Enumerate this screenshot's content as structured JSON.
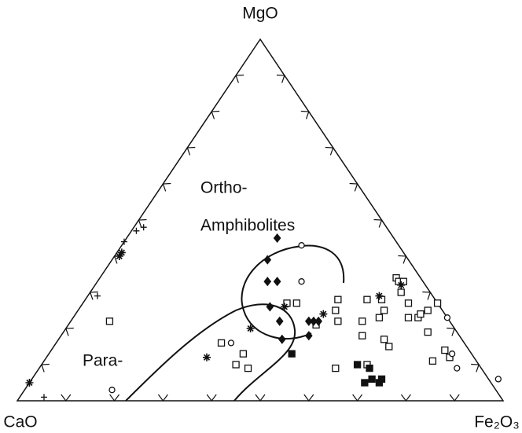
{
  "chart_data": {
    "type": "ternary",
    "corners": {
      "top": "MgO",
      "left": "CaO",
      "right": "Fe₂O₃"
    },
    "annotations": [
      "Ortho-",
      "Amphibolites",
      "Para-"
    ],
    "ticks": [
      10,
      20,
      30,
      40,
      50,
      60,
      70,
      80,
      90
    ],
    "color": "#111",
    "series": [
      {
        "marker": "square-open",
        "mgo": [
          22,
          16,
          10,
          9,
          13,
          27,
          27,
          28,
          25,
          22,
          21,
          9,
          10,
          28,
          22,
          18,
          23,
          28,
          25,
          17,
          15,
          34,
          33,
          33,
          30,
          27,
          23,
          23,
          24,
          25,
          27,
          19,
          11,
          14,
          12
        ],
        "fe2o3": [
          8,
          34,
          40,
          43,
          40,
          42,
          44,
          52,
          53,
          55,
          51,
          61,
          67,
          58,
          60,
          62,
          63,
          61,
          63,
          67,
          69,
          61,
          62,
          63,
          64,
          67,
          69,
          71,
          71,
          72,
          73,
          75,
          80,
          81,
          83
        ]
      },
      {
        "marker": "square-filled",
        "mgo": [
          13,
          10,
          9,
          6,
          5,
          5,
          6
        ],
        "fe2o3": [
          50,
          65,
          68,
          70,
          69,
          72,
          72
        ]
      },
      {
        "marker": "diamond",
        "mgo": [
          45,
          39,
          33,
          33,
          26,
          22,
          17,
          22,
          22,
          22,
          18
        ],
        "fe2o3": [
          31,
          32,
          35,
          37,
          39,
          43,
          46,
          49,
          50,
          51,
          51
        ]
      },
      {
        "marker": "asterisk",
        "mgo": [
          41,
          40,
          12,
          20,
          26,
          24,
          29,
          32,
          5
        ],
        "fe2o3": [
          1,
          1,
          33,
          38,
          42,
          51,
          60,
          63,
          0
        ]
      },
      {
        "marker": "circle-open",
        "mgo": [
          43,
          33,
          16,
          3,
          23,
          13,
          9,
          6
        ],
        "fe2o3": [
          37,
          42,
          36,
          18,
          77,
          83,
          86,
          96
        ]
      },
      {
        "marker": "plus",
        "mgo": [
          48,
          47,
          44,
          29,
          1
        ],
        "fe2o3": [
          2,
          1,
          0,
          2,
          5
        ]
      }
    ]
  }
}
